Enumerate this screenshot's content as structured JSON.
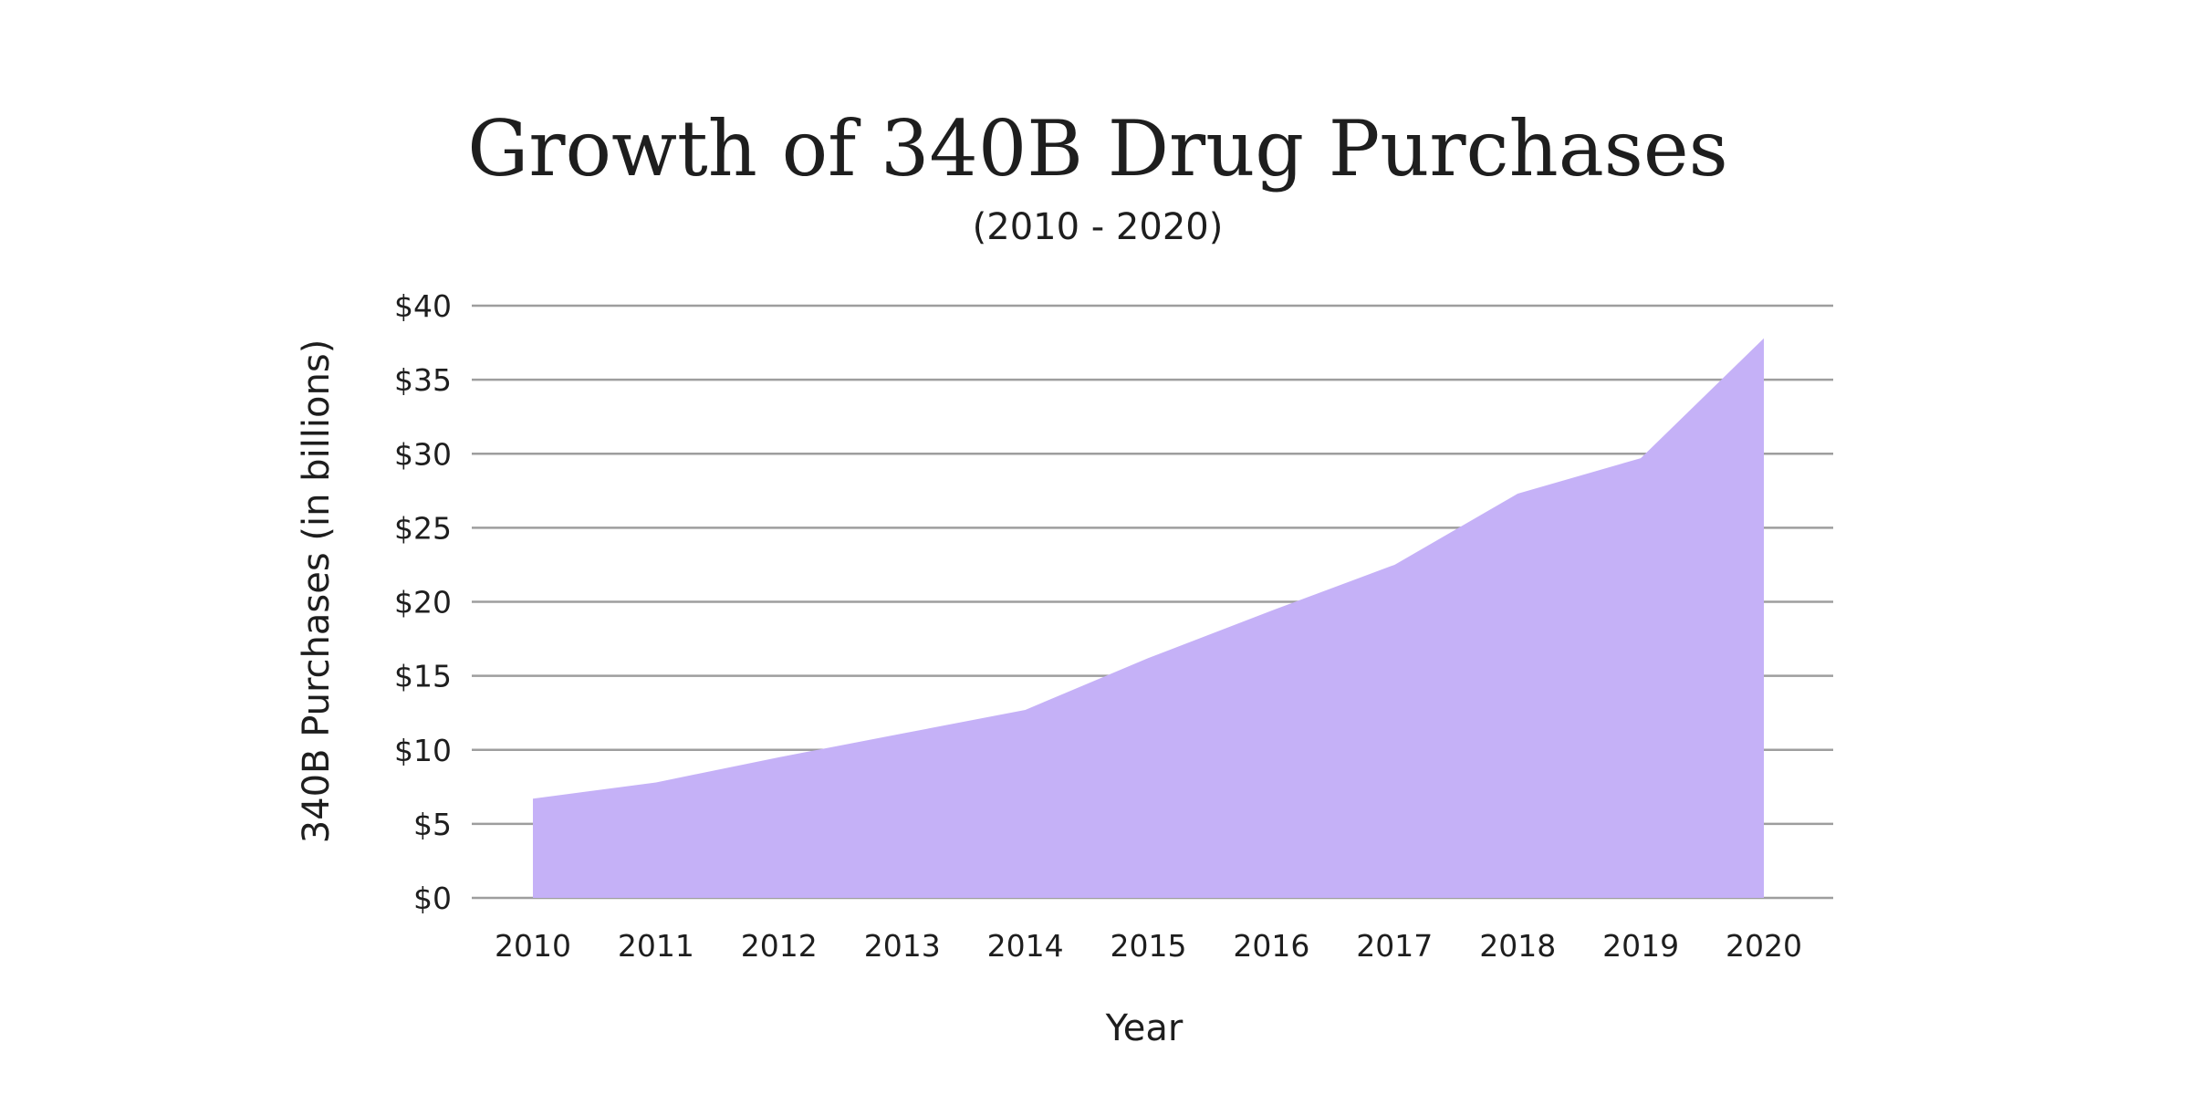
{
  "chart_data": {
    "type": "area",
    "title": "Growth of 340B Drug Purchases",
    "subtitle": "(2010 - 2020)",
    "xlabel": "Year",
    "ylabel": "340B Purchases (in billions)",
    "categories": [
      "2010",
      "2011",
      "2012",
      "2013",
      "2014",
      "2015",
      "2016",
      "2017",
      "2018",
      "2019",
      "2020"
    ],
    "values": [
      6.7,
      7.8,
      9.5,
      11.1,
      12.7,
      16.2,
      19.4,
      22.5,
      27.3,
      29.7,
      37.8
    ],
    "ylim": [
      0,
      40
    ],
    "yticks": [
      0,
      5,
      10,
      15,
      20,
      25,
      30,
      35,
      40
    ],
    "ytick_labels": [
      "$0",
      "$5",
      "$10",
      "$15",
      "$20",
      "$25",
      "$30",
      "$35",
      "$40"
    ],
    "grid": true,
    "legend": "none",
    "colors": {
      "fill": "#c5b1f7",
      "grid": "#9e9e9e",
      "text": "#1e1e1e"
    }
  }
}
